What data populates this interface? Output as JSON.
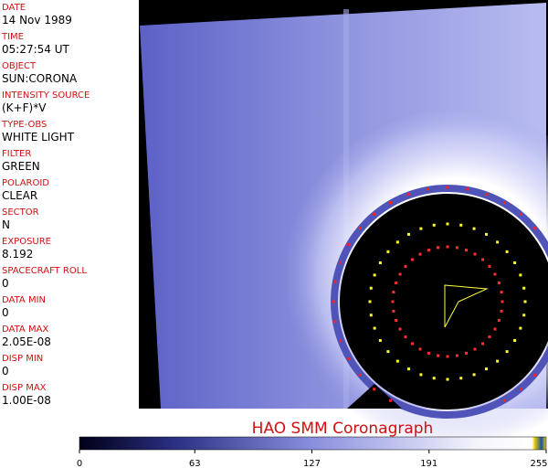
{
  "fields": [
    {
      "label": "DATE",
      "value": "14 Nov 1989"
    },
    {
      "label": "TIME",
      "value": "05:27:54 UT"
    },
    {
      "label": "OBJECT",
      "value": "SUN:CORONA"
    },
    {
      "label": "INTENSITY SOURCE",
      "value": "(K+F)*V"
    },
    {
      "label": "TYPE-OBS",
      "value": "WHITE LIGHT"
    },
    {
      "label": "FILTER",
      "value": "GREEN"
    },
    {
      "label": "POLAROID",
      "value": "CLEAR"
    },
    {
      "label": "SECTOR",
      "value": "N"
    },
    {
      "label": "EXPOSURE",
      "value": "8.192"
    },
    {
      "label": "SPACECRAFT ROLL",
      "value": "0"
    },
    {
      "label": "DATA MIN",
      "value": "0"
    },
    {
      "label": "DATA MAX",
      "value": "2.05E-08"
    },
    {
      "label": "DISP MIN",
      "value": "0"
    },
    {
      "label": "DISP MAX",
      "value": "1.00E-08"
    }
  ],
  "title": "HAO   SMM Coronagraph",
  "colorbar": {
    "lim": [
      0,
      255
    ],
    "ticks": [
      0,
      63,
      127,
      191,
      255
    ]
  }
}
